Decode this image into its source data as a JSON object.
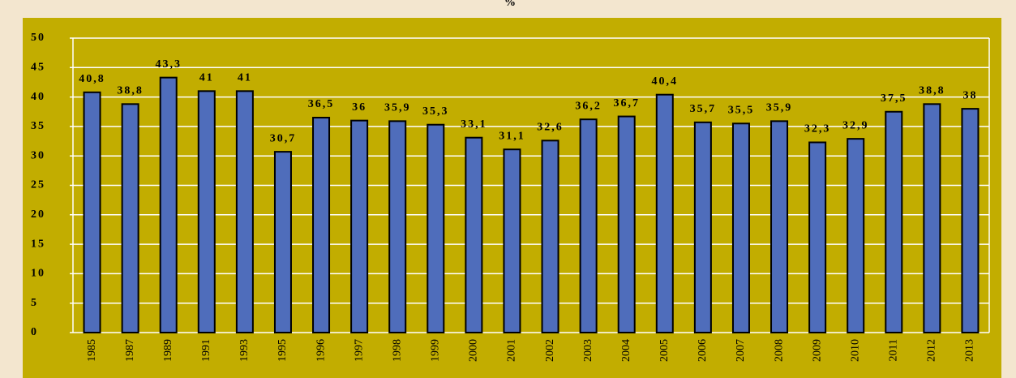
{
  "chart_data": {
    "type": "bar",
    "title": "%",
    "categories": [
      "1985",
      "1987",
      "1989",
      "1991",
      "1993",
      "1995",
      "1996",
      "1997",
      "1998",
      "1999",
      "2000",
      "2001",
      "2002",
      "2003",
      "2004",
      "2005",
      "2006",
      "2007",
      "2008",
      "2009",
      "2010",
      "2011",
      "2012",
      "2013"
    ],
    "values": [
      40.8,
      38.8,
      43.3,
      41,
      41,
      30.7,
      36.5,
      36,
      35.9,
      35.3,
      33.1,
      31.1,
      32.6,
      36.2,
      36.7,
      40.4,
      35.7,
      35.5,
      35.9,
      32.3,
      32.9,
      37.5,
      38.8,
      38
    ],
    "value_labels": [
      "40,8",
      "38,8",
      "43,3",
      "41",
      "41",
      "30,7",
      "36,5",
      "36",
      "35,9",
      "35,3",
      "33,1",
      "31,1",
      "32,6",
      "36,2",
      "36,7",
      "40,4",
      "35,7",
      "35,5",
      "35,9",
      "32,3",
      "32,9",
      "37,5",
      "38,8",
      "38"
    ],
    "color": "#4f6dbb",
    "ylim": [
      0,
      50
    ],
    "yticks": [
      0,
      5,
      10,
      15,
      20,
      25,
      30,
      35,
      40,
      45,
      50
    ],
    "grid": true
  }
}
